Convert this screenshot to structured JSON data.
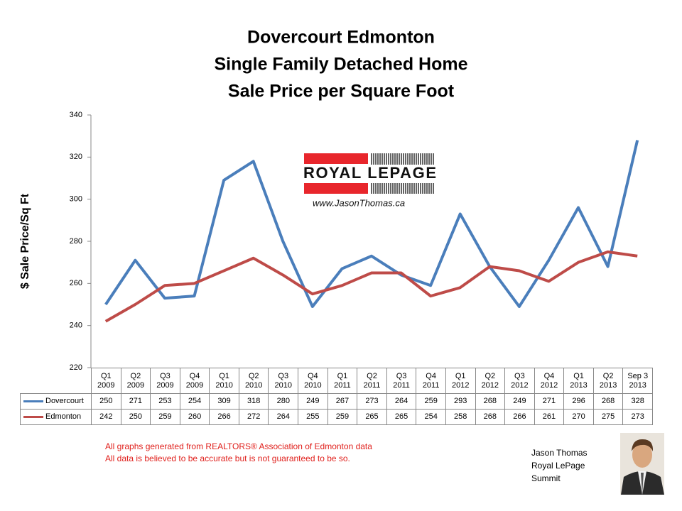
{
  "chart_data": {
    "type": "line",
    "title": [
      "Dovercourt Edmonton",
      "Single Family Detached Home",
      "Sale Price per Square Foot"
    ],
    "y_label": "$ Sale Price/Sq Ft",
    "categories": [
      "Q1 2009",
      "Q2 2009",
      "Q3 2009",
      "Q4 2009",
      "Q1 2010",
      "Q2 2010",
      "Q3 2010",
      "Q4 2010",
      "Q1 2011",
      "Q2 2011",
      "Q3 2011",
      "Q4 2011",
      "Q1 2012",
      "Q2 2012",
      "Q3 2012",
      "Q4 2012",
      "Q1 2013",
      "Q2 2013",
      "Sep 3 2013"
    ],
    "series": [
      {
        "name": "Dovercourt",
        "color": "#4a7ebb",
        "values": [
          250,
          271,
          253,
          254,
          309,
          318,
          280,
          249,
          267,
          273,
          264,
          259,
          293,
          268,
          249,
          271,
          296,
          268,
          328
        ]
      },
      {
        "name": "Edmonton",
        "color": "#be4b48",
        "values": [
          242,
          250,
          259,
          260,
          266,
          272,
          264,
          255,
          259,
          265,
          265,
          254,
          258,
          268,
          266,
          261,
          270,
          275,
          273
        ]
      }
    ],
    "ylim": [
      220,
      340
    ],
    "yticks": [
      220,
      240,
      260,
      280,
      300,
      320,
      340
    ],
    "grid": false,
    "logo": {
      "brand": "ROYAL LEPAGE",
      "website": "www.JasonThomas.ca"
    },
    "footnotes": [
      "All graphs generated from REALTORS® Association of Edmonton data",
      "All data is believed to be accurate but is not guaranteed to be so."
    ],
    "signature": [
      "Jason Thomas",
      "Royal LePage",
      "Summit"
    ]
  }
}
